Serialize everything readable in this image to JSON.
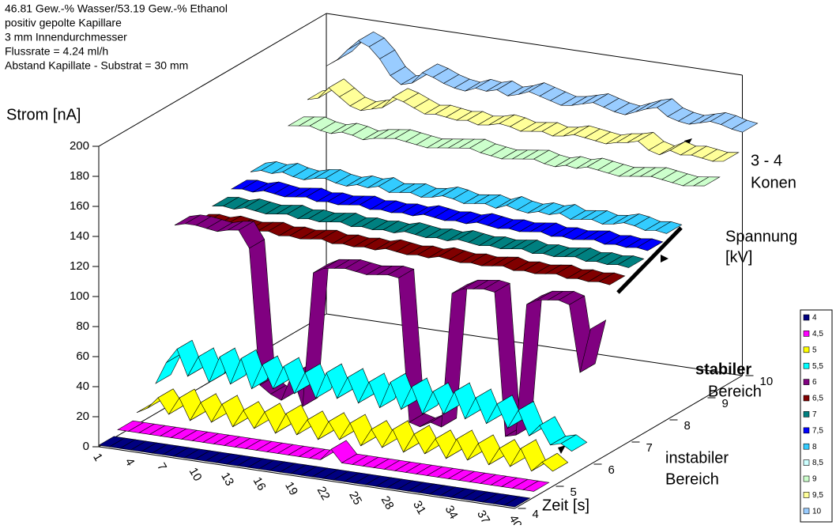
{
  "chart_data": {
    "type": "ribbon3d",
    "title_lines": [
      "46.81 Gew.-% Wasser/53.19 Gew.-% Ethanol",
      "positiv gepolte Kapillare",
      "3 mm Innendurchmesser",
      "Flussrate = 4.24 ml/h",
      "Abstand Kapillate - Substrat = 30 mm"
    ],
    "ylabel": "Strom [nA]",
    "xlabel": "Zeit [s]",
    "zlabel": [
      "Spannung",
      "[kV]"
    ],
    "annotations": [
      "3 - 4",
      "Konen",
      "stabiler",
      "Bereich",
      "instabiler",
      "Bereich"
    ],
    "ylim": [
      0,
      200
    ],
    "yticks": [
      0,
      20,
      40,
      60,
      80,
      100,
      120,
      140,
      160,
      180,
      200
    ],
    "zticks": [
      4,
      5,
      6,
      7,
      8,
      9,
      10
    ],
    "categories": [
      1,
      null,
      null,
      4,
      null,
      null,
      7,
      null,
      null,
      10,
      null,
      null,
      13,
      null,
      null,
      16,
      null,
      null,
      19,
      null,
      null,
      22,
      null,
      null,
      25,
      null,
      null,
      28,
      null,
      null,
      31,
      null,
      null,
      34,
      null,
      null,
      37,
      null,
      null,
      40
    ],
    "series": [
      {
        "name": "4",
        "color": "#000080",
        "values": [
          1,
          1,
          1,
          1,
          1,
          1,
          1,
          1,
          1,
          1,
          1,
          1,
          1,
          1,
          1,
          1,
          1,
          1,
          1,
          1,
          1,
          1,
          1,
          1,
          1,
          1,
          1,
          1,
          1,
          1,
          1,
          1,
          1,
          1,
          1,
          1,
          1,
          1,
          1,
          1
        ]
      },
      {
        "name": "4,5",
        "color": "#ff00ff",
        "values": [
          4,
          4,
          4,
          4,
          4,
          4,
          4,
          4,
          4,
          4,
          4,
          4,
          4,
          4,
          4,
          4,
          4,
          4,
          4,
          4,
          12,
          4,
          4,
          4,
          4,
          4,
          4,
          4,
          4,
          4,
          4,
          4,
          4,
          4,
          4,
          4,
          4,
          4,
          4,
          4
        ]
      },
      {
        "name": "5",
        "color": "#ffff00",
        "values": [
          8,
          12,
          20,
          10,
          22,
          8,
          21,
          9,
          22,
          8,
          20,
          9,
          21,
          8,
          22,
          9,
          20,
          8,
          21,
          10,
          22,
          8,
          20,
          9,
          22,
          8,
          21,
          9,
          20,
          8,
          22,
          9,
          21,
          8,
          20,
          9,
          22,
          8,
          15,
          10
        ]
      },
      {
        "name": "5,5",
        "color": "#00ffff",
        "values": [
          20,
          35,
          45,
          28,
          42,
          26,
          44,
          27,
          45,
          26,
          43,
          28,
          44,
          27,
          42,
          26,
          44,
          28,
          43,
          27,
          42,
          26,
          44,
          27,
          43,
          26,
          42,
          28,
          44,
          27,
          42,
          26,
          40,
          25,
          38,
          22,
          30,
          18,
          20,
          16
        ]
      },
      {
        "name": "6",
        "color": "#800080",
        "values": [
          118,
          120,
          120,
          119,
          118,
          120,
          121,
          110,
          20,
          15,
          12,
          30,
          10,
          100,
          104,
          105,
          106,
          105,
          104,
          105,
          106,
          105,
          10,
          8,
          12,
          10,
          100,
          104,
          105,
          106,
          105,
          10,
          12,
          100,
          104,
          105,
          106,
          104,
          60,
          90
        ]
      },
      {
        "name": "6,5",
        "color": "#800000",
        "values": [
          112,
          113,
          112,
          114,
          113,
          112,
          113,
          114,
          112,
          113,
          112,
          113,
          114,
          112,
          113,
          112,
          113,
          112,
          114,
          113,
          112,
          113,
          112,
          114,
          113,
          112,
          113,
          112,
          113,
          114,
          112,
          113,
          112,
          113,
          114,
          112,
          113,
          112,
          113,
          112
        ]
      },
      {
        "name": "7",
        "color": "#008080",
        "values": [
          116,
          117,
          116,
          118,
          117,
          116,
          117,
          118,
          116,
          117,
          116,
          117,
          118,
          116,
          117,
          116,
          117,
          116,
          118,
          117,
          116,
          117,
          116,
          118,
          117,
          116,
          117,
          116,
          117,
          118,
          116,
          117,
          116,
          117,
          118,
          116,
          117,
          116,
          117,
          116
        ]
      },
      {
        "name": "7,5",
        "color": "#0000ff",
        "values": [
          120,
          121,
          120,
          122,
          121,
          120,
          121,
          122,
          120,
          121,
          120,
          121,
          122,
          120,
          121,
          120,
          121,
          120,
          122,
          121,
          120,
          121,
          120,
          122,
          121,
          120,
          121,
          120,
          121,
          122,
          120,
          121,
          120,
          121,
          122,
          120,
          121,
          120,
          121,
          120
        ]
      },
      {
        "name": "8",
        "color": "#33ccff",
        "values": [
          124,
          126,
          125,
          127,
          125,
          124,
          126,
          127,
          125,
          124,
          126,
          125,
          127,
          124,
          125,
          126,
          124,
          125,
          127,
          126,
          124,
          125,
          126,
          124,
          127,
          125,
          124,
          126,
          125,
          127,
          124,
          125,
          126,
          124,
          125,
          127,
          126,
          124,
          125,
          124
        ]
      },
      {
        "name": "8,5",
        "color": "#ccffff",
        "values": [
          null,
          null,
          null,
          null,
          null,
          null,
          null,
          null,
          null,
          null,
          null,
          null,
          null,
          null,
          null,
          null,
          null,
          null,
          null,
          null,
          null,
          null,
          null,
          null,
          null,
          null,
          null,
          null,
          null,
          null,
          null,
          null,
          null,
          null,
          null,
          null,
          null,
          null,
          null,
          null
        ]
      },
      {
        "name": "9",
        "color": "#ccffcc",
        "values": [
          140,
          141,
          142,
          140,
          139,
          141,
          140,
          138,
          140,
          141,
          142,
          141,
          140,
          139,
          140,
          141,
          142,
          143,
          141,
          140,
          139,
          140,
          141,
          142,
          140,
          139,
          141,
          140,
          142,
          141,
          140,
          139,
          140,
          141,
          142,
          141,
          140,
          139,
          140,
          141
        ]
      },
      {
        "name": "9,5",
        "color": "#ffff99",
        "values": [
          150,
          152,
          160,
          155,
          150,
          148,
          150,
          152,
          160,
          158,
          155,
          152,
          153,
          152,
          151,
          152,
          150,
          151,
          153,
          152,
          150,
          151,
          152,
          150,
          151,
          153,
          152,
          151,
          150,
          152,
          153,
          155,
          150,
          148,
          152,
          150,
          151,
          150,
          149,
          150
        ]
      },
      {
        "name": "10",
        "color": "#99ccff",
        "values": [
          165,
          170,
          178,
          185,
          182,
          175,
          165,
          160,
          162,
          170,
          168,
          165,
          163,
          162,
          165,
          164,
          166,
          163,
          165,
          168,
          166,
          164,
          162,
          163,
          165,
          167,
          165,
          163,
          162,
          165,
          168,
          170,
          165,
          163,
          162,
          164,
          166,
          165,
          163,
          162
        ]
      }
    ]
  }
}
